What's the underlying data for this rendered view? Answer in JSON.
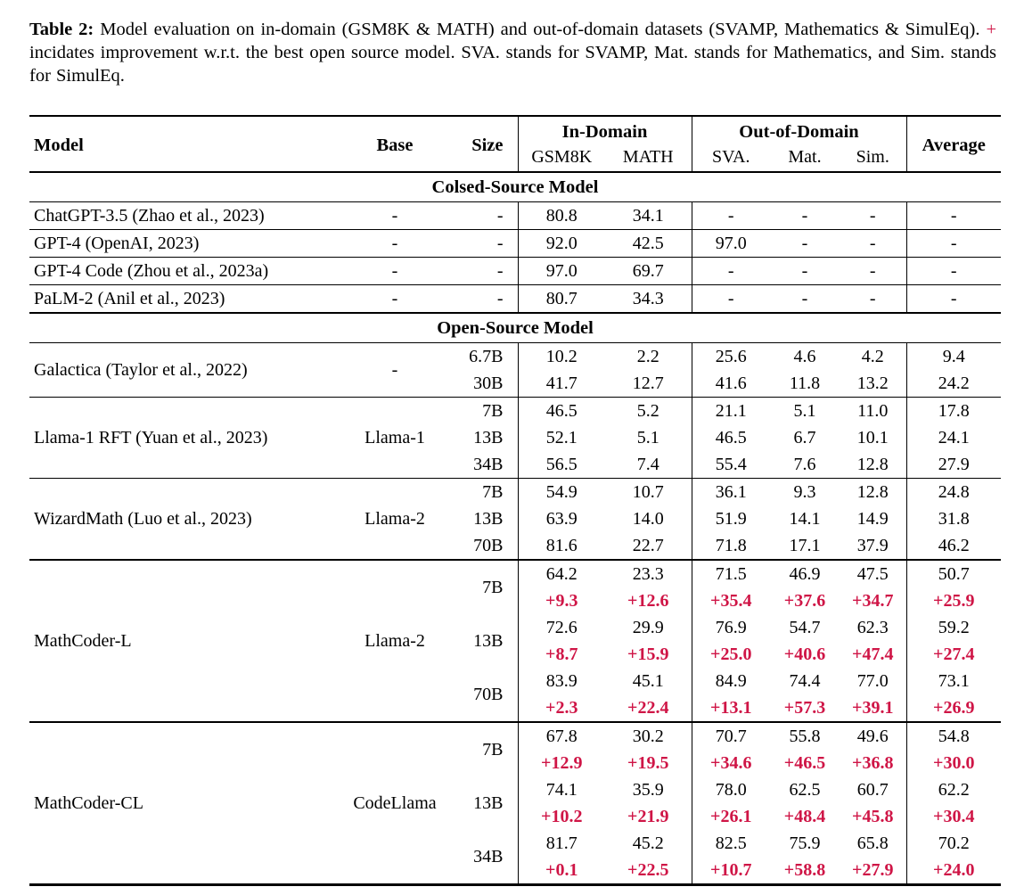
{
  "colors": {
    "accent_red": "#cf1546"
  },
  "caption": {
    "label": "Table 2:",
    "before_plus": " Model evaluation on in-domain (GSM8K & MATH) and out-of-domain datasets (SVAMP, Mathematics & SimulEq). ",
    "plus": "+",
    "after_plus": " incidates improvement w.r.t. the best open source model. SVA. stands for SVAMP, Mat. stands for Mathematics, and Sim. stands for SimulEq."
  },
  "table": {
    "header": {
      "model": "Model",
      "base": "Base",
      "size": "Size",
      "in_domain": "In-Domain",
      "out_of_domain": "Out-of-Domain",
      "gsm8k": "GSM8K",
      "math": "MATH",
      "sva": "SVA.",
      "mat": "Mat.",
      "sim": "Sim.",
      "average": "Average"
    },
    "sections": [
      {
        "title": "Colsed-Source Model",
        "groups": [
          {
            "model": "ChatGPT-3.5 (Zhao et al., 2023)",
            "base": "-",
            "rows": [
              {
                "size": "-",
                "values": [
                  "80.8",
                  "34.1",
                  "-",
                  "-",
                  "-",
                  "-"
                ]
              }
            ]
          },
          {
            "model": "GPT-4 (OpenAI, 2023)",
            "base": "-",
            "rows": [
              {
                "size": "-",
                "values": [
                  "92.0",
                  "42.5",
                  "97.0",
                  "-",
                  "-",
                  "-"
                ]
              }
            ]
          },
          {
            "model": "GPT-4 Code (Zhou et al., 2023a)",
            "base": "-",
            "rows": [
              {
                "size": "-",
                "values": [
                  "97.0",
                  "69.7",
                  "-",
                  "-",
                  "-",
                  "-"
                ]
              }
            ]
          },
          {
            "model": "PaLM-2 (Anil et al., 2023)",
            "base": "-",
            "rows": [
              {
                "size": "-",
                "values": [
                  "80.7",
                  "34.3",
                  "-",
                  "-",
                  "-",
                  "-"
                ]
              }
            ]
          }
        ]
      },
      {
        "title": "Open-Source Model",
        "groups": [
          {
            "model": "Galactica (Taylor et al., 2022)",
            "base": "-",
            "rows": [
              {
                "size": "6.7B",
                "values": [
                  "10.2",
                  "2.2",
                  "25.6",
                  "4.6",
                  "4.2",
                  "9.4"
                ]
              },
              {
                "size": "30B",
                "values": [
                  "41.7",
                  "12.7",
                  "41.6",
                  "11.8",
                  "13.2",
                  "24.2"
                ]
              }
            ]
          },
          {
            "model": "Llama-1 RFT (Yuan et al., 2023)",
            "base": "Llama-1",
            "rows": [
              {
                "size": "7B",
                "values": [
                  "46.5",
                  "5.2",
                  "21.1",
                  "5.1",
                  "11.0",
                  "17.8"
                ]
              },
              {
                "size": "13B",
                "values": [
                  "52.1",
                  "5.1",
                  "46.5",
                  "6.7",
                  "10.1",
                  "24.1"
                ]
              },
              {
                "size": "34B",
                "values": [
                  "56.5",
                  "7.4",
                  "55.4",
                  "7.6",
                  "12.8",
                  "27.9"
                ]
              }
            ]
          },
          {
            "model": "WizardMath (Luo et al., 2023)",
            "base": "Llama-2",
            "rows": [
              {
                "size": "7B",
                "values": [
                  "54.9",
                  "10.7",
                  "36.1",
                  "9.3",
                  "12.8",
                  "24.8"
                ]
              },
              {
                "size": "13B",
                "values": [
                  "63.9",
                  "14.0",
                  "51.9",
                  "14.1",
                  "14.9",
                  "31.8"
                ]
              },
              {
                "size": "70B",
                "values": [
                  "81.6",
                  "22.7",
                  "71.8",
                  "17.1",
                  "37.9",
                  "46.2"
                ]
              }
            ]
          },
          {
            "model": "MathCoder-L",
            "base": "Llama-2",
            "thick": true,
            "rows": [
              {
                "size": "7B",
                "values": [
                  "64.2",
                  "23.3",
                  "71.5",
                  "46.9",
                  "47.5",
                  "50.7"
                ],
                "delta": [
                  "+9.3",
                  "+12.6",
                  "+35.4",
                  "+37.6",
                  "+34.7",
                  "+25.9"
                ]
              },
              {
                "size": "13B",
                "values": [
                  "72.6",
                  "29.9",
                  "76.9",
                  "54.7",
                  "62.3",
                  "59.2"
                ],
                "delta": [
                  "+8.7",
                  "+15.9",
                  "+25.0",
                  "+40.6",
                  "+47.4",
                  "+27.4"
                ]
              },
              {
                "size": "70B",
                "values": [
                  "83.9",
                  "45.1",
                  "84.9",
                  "74.4",
                  "77.0",
                  "73.1"
                ],
                "delta": [
                  "+2.3",
                  "+22.4",
                  "+13.1",
                  "+57.3",
                  "+39.1",
                  "+26.9"
                ]
              }
            ]
          },
          {
            "model": "MathCoder-CL",
            "base": "CodeLlama",
            "thick": true,
            "rows": [
              {
                "size": "7B",
                "values": [
                  "67.8",
                  "30.2",
                  "70.7",
                  "55.8",
                  "49.6",
                  "54.8"
                ],
                "delta": [
                  "+12.9",
                  "+19.5",
                  "+34.6",
                  "+46.5",
                  "+36.8",
                  "+30.0"
                ]
              },
              {
                "size": "13B",
                "values": [
                  "74.1",
                  "35.9",
                  "78.0",
                  "62.5",
                  "60.7",
                  "62.2"
                ],
                "delta": [
                  "+10.2",
                  "+21.9",
                  "+26.1",
                  "+48.4",
                  "+45.8",
                  "+30.4"
                ]
              },
              {
                "size": "34B",
                "values": [
                  "81.7",
                  "45.2",
                  "82.5",
                  "75.9",
                  "65.8",
                  "70.2"
                ],
                "delta": [
                  "+0.1",
                  "+22.5",
                  "+10.7",
                  "+58.8",
                  "+27.9",
                  "+24.0"
                ]
              }
            ]
          }
        ]
      }
    ]
  }
}
